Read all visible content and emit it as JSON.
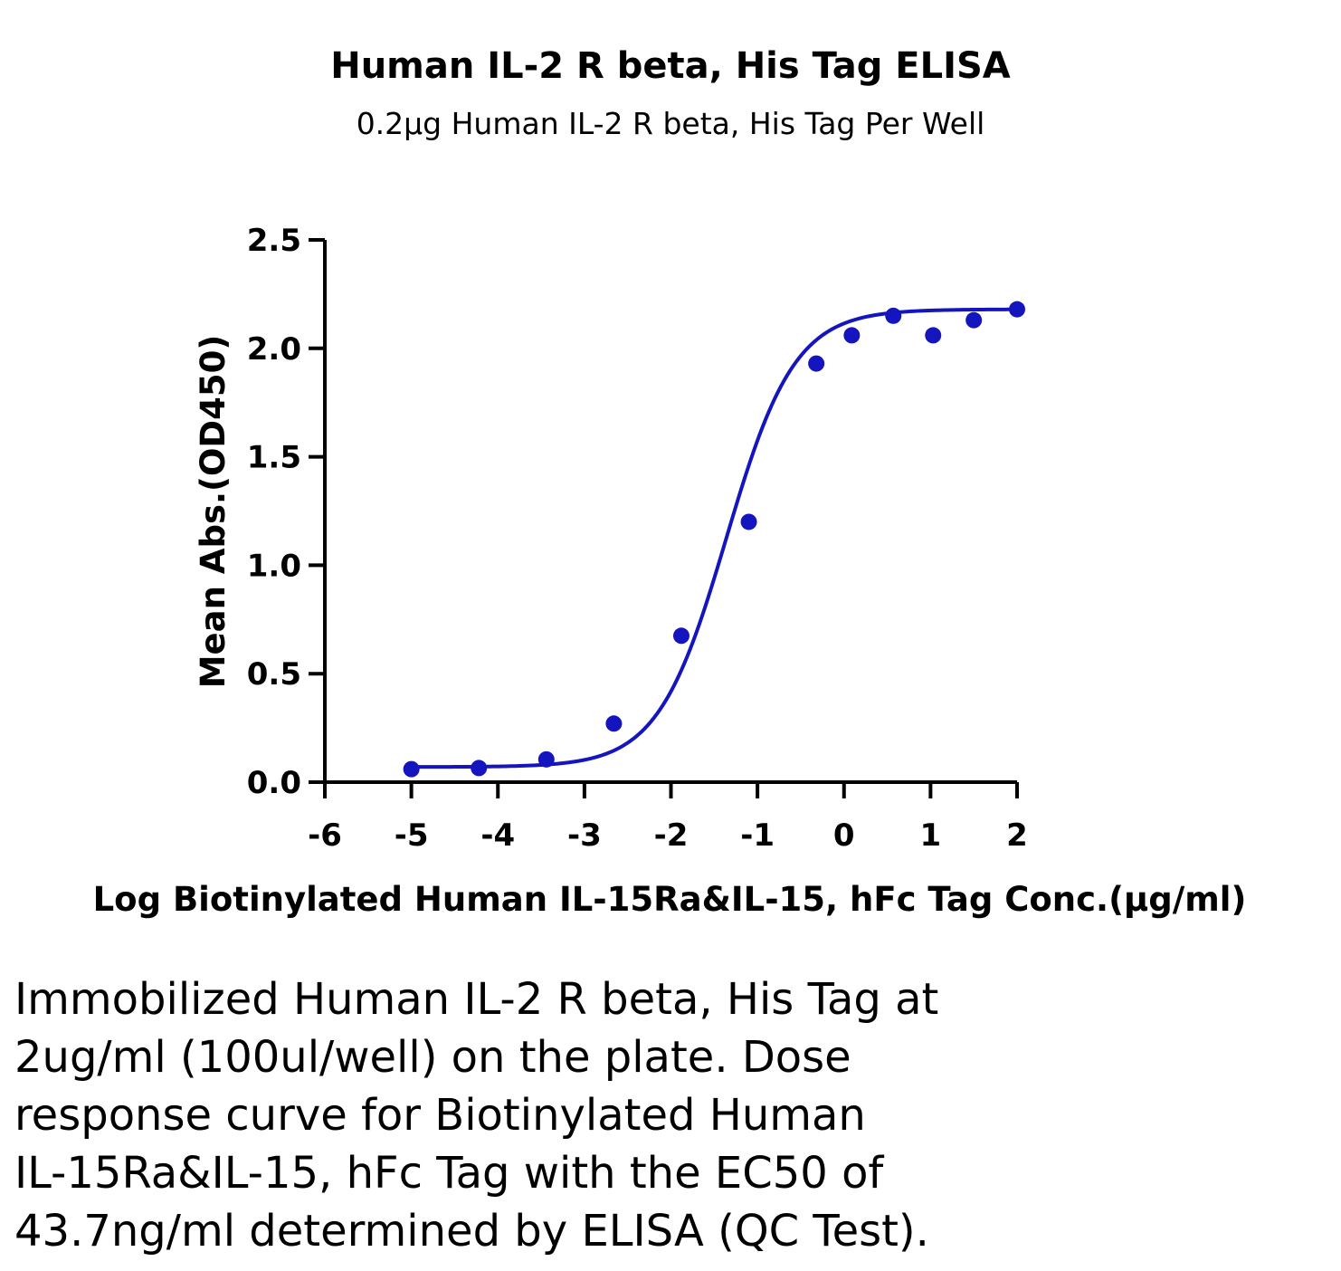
{
  "chart_data": {
    "type": "scatter",
    "title": "Human IL-2 R beta, His Tag ELISA",
    "subtitle": "0.2µg Human IL-2 R beta, His Tag Per Well",
    "xlabel": "Log Biotinylated Human IL-15Ra&IL-15, hFc Tag Conc.(µg/ml)",
    "ylabel": "Mean Abs.(OD450)",
    "xlim": [
      -6,
      2
    ],
    "ylim": [
      0,
      2.5
    ],
    "xticks": [
      "-6",
      "-5",
      "-4",
      "-3",
      "-2",
      "-1",
      "0",
      "1",
      "2"
    ],
    "yticks": [
      "0.0",
      "0.5",
      "1.0",
      "1.5",
      "2.0",
      "2.5"
    ],
    "grid": false,
    "legend": "none",
    "color": "#1515c0",
    "x": [
      -5.0,
      -4.22,
      -3.44,
      -2.66,
      -1.88,
      -1.1,
      -0.32,
      0.09,
      0.57,
      1.03,
      1.5,
      2.0
    ],
    "y": [
      0.06,
      0.065,
      0.105,
      0.27,
      0.675,
      1.2,
      1.93,
      2.06,
      2.15,
      2.06,
      2.13,
      2.18
    ],
    "fit_curve": {
      "model": "4PL",
      "bottom": 0.07,
      "top": 2.18,
      "logEC50": -1.36,
      "hill": 1.1
    }
  },
  "caption": {
    "lines": [
      "Immobilized Human IL-2 R beta, His Tag at",
      "2ug/ml (100ul/well) on the plate. Dose",
      "response curve for Biotinylated Human",
      "IL-15Ra&IL-15, hFc Tag with the EC50 of",
      "43.7ng/ml determined by ELISA (QC Test)."
    ]
  }
}
